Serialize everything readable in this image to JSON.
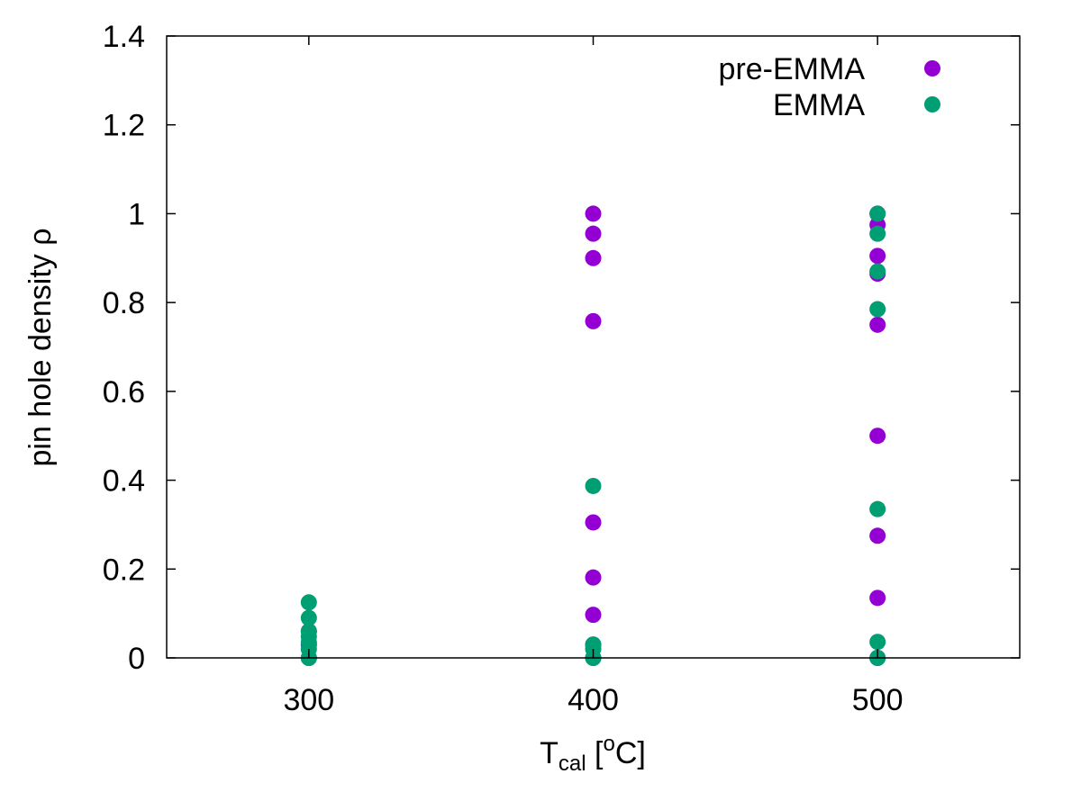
{
  "chart_data": {
    "type": "scatter",
    "xlabel": {
      "main": "T",
      "sub": "cal",
      "unit_open": " [",
      "unit_sup": "o",
      "unit_close": "C]"
    },
    "ylabel": "pin hole density ρ",
    "xlim": [
      250,
      550
    ],
    "ylim": [
      0,
      1.4
    ],
    "x_ticks": [
      300,
      400,
      500
    ],
    "x_tick_labels": [
      "300",
      "400",
      "500"
    ],
    "y_ticks": [
      0,
      0.2,
      0.4,
      0.6,
      0.8,
      1.0,
      1.2,
      1.4
    ],
    "y_tick_labels": [
      "0",
      "0.2",
      "0.4",
      "0.6",
      "0.8",
      "1",
      "1.2",
      "1.4"
    ],
    "grid": false,
    "legend_position": "top-right",
    "series": [
      {
        "name": "pre-EMMA",
        "color": "#9400d3",
        "points": [
          [
            300,
            0.0
          ],
          [
            300,
            0.03
          ],
          [
            300,
            0.06
          ],
          [
            400,
            1.0
          ],
          [
            400,
            0.955
          ],
          [
            400,
            0.9
          ],
          [
            400,
            0.758
          ],
          [
            400,
            0.305
          ],
          [
            400,
            0.181
          ],
          [
            400,
            0.097
          ],
          [
            400,
            0.03
          ],
          [
            400,
            0.0
          ],
          [
            500,
            1.0
          ],
          [
            500,
            0.975
          ],
          [
            500,
            0.905
          ],
          [
            500,
            0.865
          ],
          [
            500,
            0.75
          ],
          [
            500,
            0.5
          ],
          [
            500,
            0.275
          ],
          [
            500,
            0.135
          ],
          [
            500,
            0.0
          ]
        ]
      },
      {
        "name": "EMMA",
        "color": "#009e73",
        "points": [
          [
            300,
            0.125
          ],
          [
            300,
            0.09
          ],
          [
            300,
            0.06
          ],
          [
            300,
            0.048
          ],
          [
            300,
            0.035
          ],
          [
            300,
            0.02
          ],
          [
            300,
            0.0
          ],
          [
            400,
            0.387
          ],
          [
            400,
            0.03
          ],
          [
            400,
            0.02
          ],
          [
            400,
            0.0
          ],
          [
            500,
            1.0
          ],
          [
            500,
            0.955
          ],
          [
            500,
            0.87
          ],
          [
            500,
            0.785
          ],
          [
            500,
            0.335
          ],
          [
            500,
            0.036
          ],
          [
            500,
            0.0
          ]
        ]
      }
    ]
  }
}
